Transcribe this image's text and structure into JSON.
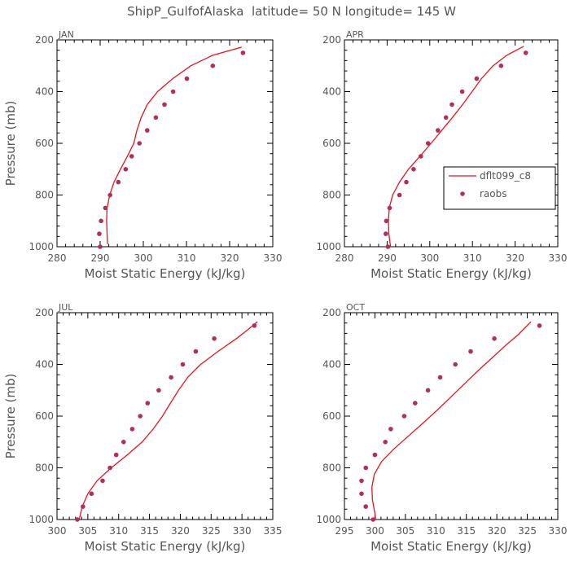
{
  "figure": {
    "title": "ShipP_GulfofAlaska  latitude= 50 N longitude= 145 W"
  },
  "legend": {
    "entries": [
      {
        "label": "dflt099_c8",
        "kind": "line",
        "color": "#e8141c"
      },
      {
        "label": "raobs",
        "kind": "marker",
        "color": "#b0305a"
      }
    ],
    "panel": "APR",
    "placement": "center-right"
  },
  "chart_data": [
    {
      "type": "line",
      "panel_label": "JAN",
      "xlabel": "Moist Static Energy (kJ/kg)",
      "ylabel": "Pressure (mb)",
      "xlim": [
        280,
        330
      ],
      "ylim": [
        1000,
        200
      ],
      "xticks": [
        280,
        290,
        300,
        310,
        320,
        330
      ],
      "yticks": [
        1000,
        800,
        600,
        400,
        200
      ],
      "series": [
        {
          "name": "dflt099_c8",
          "kind": "line",
          "color": "#e8141c",
          "x": [
            291.7,
            291.6,
            291.5,
            291.6,
            292.2,
            293.2,
            294.7,
            296.3,
            297.8,
            298.5,
            299.5,
            300.9,
            303.3,
            306.8,
            311.0,
            316.0,
            322.8
          ],
          "y": [
            990,
            950,
            900,
            850,
            800,
            750,
            700,
            650,
            600,
            550,
            500,
            450,
            400,
            350,
            300,
            260,
            228
          ]
        },
        {
          "name": "raobs",
          "kind": "marker",
          "color": "#b0305a",
          "x": [
            290.0,
            289.8,
            290.2,
            291.2,
            292.3,
            294.2,
            295.9,
            297.3,
            299.1,
            300.9,
            302.9,
            304.9,
            306.9,
            310.1,
            316.1,
            323.1
          ],
          "y": [
            1000,
            950,
            900,
            850,
            800,
            750,
            700,
            650,
            600,
            550,
            500,
            450,
            400,
            350,
            300,
            250
          ]
        }
      ]
    },
    {
      "type": "line",
      "panel_label": "APR",
      "xlabel": "Moist Static Energy (kJ/kg)",
      "ylabel": "",
      "xlim": [
        280,
        330
      ],
      "ylim": [
        1000,
        200
      ],
      "xticks": [
        280,
        290,
        300,
        310,
        320,
        330
      ],
      "yticks": [
        1000,
        800,
        600,
        400,
        200
      ],
      "series": [
        {
          "name": "dflt099_c8",
          "kind": "line",
          "color": "#e8141c",
          "x": [
            290.8,
            290.4,
            290.3,
            290.5,
            291.3,
            292.9,
            295.0,
            297.7,
            300.3,
            302.8,
            305.3,
            307.7,
            309.9,
            312.1,
            314.8,
            318.0,
            322.0
          ],
          "y": [
            1000,
            950,
            900,
            850,
            800,
            750,
            700,
            650,
            600,
            550,
            500,
            450,
            400,
            350,
            300,
            260,
            225
          ]
        },
        {
          "name": "raobs",
          "kind": "marker",
          "color": "#b0305a",
          "x": [
            290.2,
            289.7,
            289.8,
            290.6,
            292.9,
            294.5,
            296.2,
            297.9,
            299.6,
            301.9,
            303.8,
            305.2,
            307.6,
            311.0,
            316.7,
            322.5
          ],
          "y": [
            1000,
            950,
            900,
            850,
            800,
            750,
            700,
            650,
            600,
            550,
            500,
            450,
            400,
            350,
            300,
            250
          ]
        }
      ]
    },
    {
      "type": "line",
      "panel_label": "JUL",
      "xlabel": "Moist Static Energy (kJ/kg)",
      "ylabel": "Pressure (mb)",
      "xlim": [
        300,
        335
      ],
      "ylim": [
        1000,
        200
      ],
      "xticks": [
        300,
        305,
        310,
        315,
        320,
        325,
        330,
        335
      ],
      "yticks": [
        1000,
        800,
        600,
        400,
        200
      ],
      "series": [
        {
          "name": "dflt099_c8",
          "kind": "line",
          "color": "#e8141c",
          "x": [
            303.6,
            304.1,
            305.0,
            306.5,
            308.8,
            311.4,
            313.8,
            315.6,
            317.1,
            318.4,
            319.7,
            321.2,
            323.3,
            326.1,
            329.1,
            331.0,
            332.5
          ],
          "y": [
            1000,
            950,
            900,
            850,
            800,
            750,
            700,
            650,
            600,
            550,
            500,
            450,
            400,
            350,
            300,
            265,
            235
          ]
        },
        {
          "name": "raobs",
          "kind": "marker",
          "color": "#b0305a",
          "x": [
            303.3,
            304.2,
            305.6,
            307.4,
            308.6,
            309.6,
            310.8,
            312.2,
            313.5,
            314.7,
            316.5,
            318.5,
            320.4,
            322.5,
            325.5,
            332.0
          ],
          "y": [
            1000,
            950,
            900,
            850,
            800,
            750,
            700,
            650,
            600,
            550,
            500,
            450,
            400,
            350,
            300,
            250
          ]
        }
      ]
    },
    {
      "type": "line",
      "panel_label": "OCT",
      "xlabel": "Moist Static Energy (kJ/kg)",
      "ylabel": "",
      "xlim": [
        295,
        330
      ],
      "ylim": [
        1000,
        200
      ],
      "xticks": [
        295,
        300,
        305,
        310,
        315,
        320,
        325,
        330
      ],
      "yticks": [
        1000,
        800,
        600,
        400,
        200
      ],
      "series": [
        {
          "name": "dflt099_c8",
          "kind": "line",
          "color": "#e8141c",
          "x": [
            300.2,
            300.0,
            299.6,
            299.5,
            299.9,
            301.1,
            303.2,
            305.6,
            308.0,
            310.3,
            312.5,
            314.7,
            316.9,
            319.2,
            321.5,
            323.5,
            325.6
          ],
          "y": [
            1020,
            975,
            925,
            875,
            825,
            775,
            725,
            675,
            625,
            575,
            525,
            475,
            425,
            375,
            325,
            285,
            235
          ]
        },
        {
          "name": "raobs",
          "kind": "marker",
          "color": "#b0305a",
          "x": [
            299.7,
            298.5,
            297.8,
            297.8,
            298.5,
            300.0,
            301.7,
            302.6,
            304.8,
            306.6,
            308.7,
            310.7,
            313.2,
            315.7,
            319.6,
            327.0
          ],
          "y": [
            1000,
            950,
            900,
            850,
            800,
            750,
            700,
            650,
            600,
            550,
            500,
            450,
            400,
            350,
            300,
            250
          ]
        }
      ]
    }
  ]
}
